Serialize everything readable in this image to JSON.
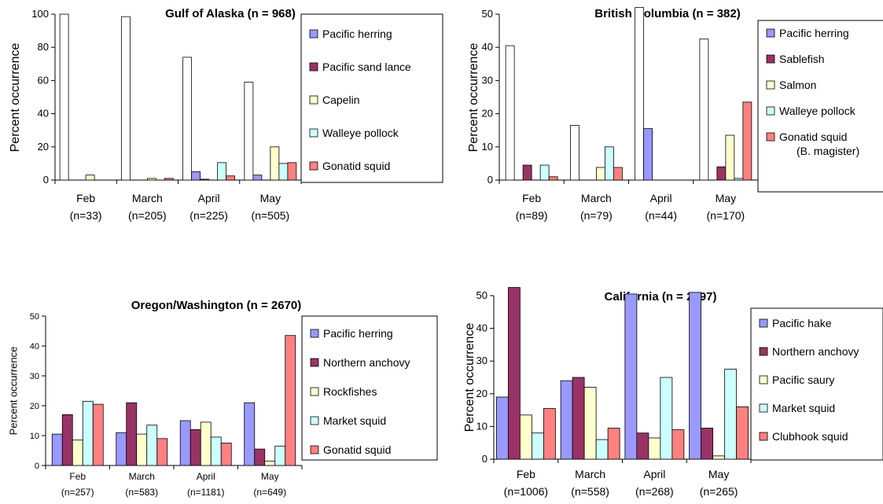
{
  "colors": {
    "series": [
      "#9999ff",
      "#993366",
      "#ffffcc",
      "#ccffff",
      "#ff8080",
      "#ffffff"
    ],
    "other": "#ffffff",
    "stroke": "#000000"
  },
  "chart_data": [
    {
      "type": "bar",
      "title": "Gulf of Alaska (n = 968)",
      "ylabel": "Percent occurrence",
      "ylim": [
        0,
        100
      ],
      "yticks": [
        0,
        20,
        40,
        60,
        80,
        100
      ],
      "categories": [
        "Feb",
        "March",
        "April",
        "May"
      ],
      "category_n": [
        "(n=33)",
        "(n=205)",
        "(n=225)",
        "(n=505)"
      ],
      "legend_position": "right",
      "series": [
        {
          "name": "",
          "values": [
            100,
            98.5,
            74,
            59
          ]
        },
        {
          "name": "Pacific herring",
          "values": [
            0,
            0,
            5,
            3
          ]
        },
        {
          "name": "Pacific sand lance",
          "values": [
            0,
            0,
            0.5,
            0
          ]
        },
        {
          "name": "Capelin",
          "values": [
            3,
            1,
            0,
            20
          ]
        },
        {
          "name": "Walleye pollock",
          "values": [
            0,
            0,
            10.5,
            10
          ]
        },
        {
          "name": "Gonatid squid",
          "values": [
            0,
            1,
            2.5,
            10.5
          ]
        }
      ],
      "legend": [
        "Pacific herring",
        "Pacific sand lance",
        "Capelin",
        "Walleye pollock",
        "Gonatid squid"
      ]
    },
    {
      "type": "bar",
      "title": "British Columbia (n = 382)",
      "ylabel": "Percent occurrence",
      "ylim": [
        0,
        50
      ],
      "yticks": [
        0,
        10,
        20,
        30,
        40,
        50
      ],
      "categories": [
        "Feb",
        "March",
        "April",
        "May"
      ],
      "category_n": [
        "(n=89)",
        "(n=79)",
        "(n=44)",
        "(n=170)"
      ],
      "legend_position": "right",
      "series": [
        {
          "name": "",
          "values": [
            40.5,
            16.5,
            52,
            42.5
          ]
        },
        {
          "name": "Pacific herring",
          "values": [
            0,
            0,
            15.5,
            0
          ]
        },
        {
          "name": "Sablefish",
          "values": [
            4.5,
            0,
            0,
            4
          ]
        },
        {
          "name": "Salmon",
          "values": [
            0,
            3.8,
            0,
            13.5
          ]
        },
        {
          "name": "Walleye pollock",
          "values": [
            4.5,
            10,
            0,
            0.5
          ]
        },
        {
          "name": "Gonatid squid (B. magister)",
          "values": [
            1,
            3.8,
            0,
            23.5
          ]
        }
      ],
      "legend": [
        "Pacific herring",
        "Sablefish",
        "Salmon",
        "Walleye pollock",
        "Gonatid squid",
        "(B. magister)"
      ]
    },
    {
      "type": "bar",
      "title": "Oregon/Washington (n = 2670)",
      "ylabel": "Percent occurrence",
      "ylim": [
        0,
        50
      ],
      "yticks": [
        0,
        10,
        20,
        30,
        40,
        50
      ],
      "categories": [
        "Feb",
        "March",
        "April",
        "May"
      ],
      "category_n": [
        "(n=257)",
        "(n=583)",
        "(n=1181)",
        "(n=649)"
      ],
      "legend_position": "right",
      "series": [
        {
          "name": "Pacific herring",
          "values": [
            10.5,
            11,
            15,
            21
          ]
        },
        {
          "name": "Northern anchovy",
          "values": [
            17,
            21,
            12,
            5.5
          ]
        },
        {
          "name": "Rockfishes",
          "values": [
            8.5,
            10.5,
            14.5,
            1.5
          ]
        },
        {
          "name": "Market squid",
          "values": [
            21.5,
            13.5,
            9.5,
            6.5
          ]
        },
        {
          "name": "Gonatid squid",
          "values": [
            20.5,
            9,
            7.5,
            43.5
          ]
        }
      ],
      "legend": [
        "Pacific herring",
        "Northern anchovy",
        "Rockfishes",
        "Market squid",
        "Gonatid squid"
      ]
    },
    {
      "type": "bar",
      "title": "California (n = 2097)",
      "ylabel": "Percent occurrence",
      "ylim": [
        0,
        50
      ],
      "yticks": [
        0,
        10,
        20,
        30,
        40,
        50
      ],
      "categories": [
        "Feb",
        "March",
        "April",
        "May"
      ],
      "category_n": [
        "(n=1006)",
        "(n=558)",
        "(n=268)",
        "(n=265)"
      ],
      "legend_position": "right",
      "series": [
        {
          "name": "Pacific hake",
          "values": [
            19,
            24,
            50.5,
            51
          ]
        },
        {
          "name": "Northern anchovy",
          "values": [
            52.5,
            25,
            8,
            9.5
          ]
        },
        {
          "name": "Pacific saury",
          "values": [
            13.5,
            22,
            6.5,
            1
          ]
        },
        {
          "name": "Market squid",
          "values": [
            8,
            6,
            25,
            27.5
          ]
        },
        {
          "name": "Clubhook squid",
          "values": [
            15.5,
            9.5,
            9,
            16
          ]
        }
      ],
      "legend": [
        "Pacific hake",
        "Northern anchovy",
        "Pacific saury",
        "Market squid",
        "Clubhook squid"
      ]
    }
  ]
}
